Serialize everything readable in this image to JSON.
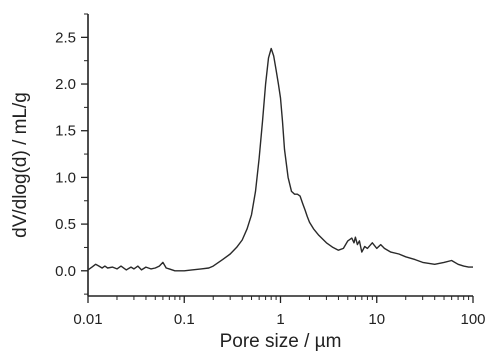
{
  "chart_data": {
    "type": "line",
    "xlabel": "Pore size / µm",
    "ylabel": "dV/dlog(d) / mL/g",
    "xscale": "log",
    "xlim": [
      0.01,
      100
    ],
    "ylim": [
      -0.27,
      2.75
    ],
    "grid": false,
    "x_ticks": [
      {
        "value": 0.01,
        "label": "0.01"
      },
      {
        "value": 0.1,
        "label": "0.1"
      },
      {
        "value": 1,
        "label": "1"
      },
      {
        "value": 10,
        "label": "10"
      },
      {
        "value": 100,
        "label": "100"
      }
    ],
    "y_ticks": [
      {
        "value": 0.0,
        "label": "0.0"
      },
      {
        "value": 0.5,
        "label": "0.5"
      },
      {
        "value": 1.0,
        "label": "1.0"
      },
      {
        "value": 1.5,
        "label": "1.5"
      },
      {
        "value": 2.0,
        "label": "2.0"
      },
      {
        "value": 2.5,
        "label": "2.5"
      }
    ],
    "series": [
      {
        "color": "#2a2a2a",
        "x": [
          0.01,
          0.011,
          0.012,
          0.013,
          0.014,
          0.015,
          0.016,
          0.018,
          0.02,
          0.022,
          0.025,
          0.028,
          0.03,
          0.033,
          0.036,
          0.04,
          0.045,
          0.05,
          0.055,
          0.06,
          0.065,
          0.07,
          0.08,
          0.1,
          0.12,
          0.15,
          0.18,
          0.2,
          0.25,
          0.3,
          0.35,
          0.4,
          0.45,
          0.5,
          0.55,
          0.6,
          0.65,
          0.7,
          0.75,
          0.8,
          0.85,
          0.9,
          0.95,
          1.0,
          1.05,
          1.1,
          1.2,
          1.3,
          1.4,
          1.5,
          1.6,
          1.7,
          1.8,
          1.9,
          2.0,
          2.2,
          2.5,
          3.0,
          3.5,
          4.0,
          4.5,
          5.0,
          5.5,
          5.8,
          6.0,
          6.3,
          6.6,
          7.0,
          7.5,
          8.0,
          9.0,
          10.0,
          11.0,
          12.0,
          14.0,
          17.0,
          20.0,
          25.0,
          30.0,
          40.0,
          50.0,
          60.0,
          70.0,
          80.0,
          90.0,
          100.0
        ],
        "y": [
          0.01,
          0.04,
          0.07,
          0.05,
          0.03,
          0.05,
          0.03,
          0.04,
          0.02,
          0.05,
          0.01,
          0.04,
          0.02,
          0.05,
          0.01,
          0.04,
          0.02,
          0.03,
          0.05,
          0.09,
          0.03,
          0.02,
          0.0,
          0.0,
          0.01,
          0.02,
          0.03,
          0.05,
          0.12,
          0.18,
          0.25,
          0.33,
          0.45,
          0.6,
          0.85,
          1.2,
          1.6,
          2.0,
          2.28,
          2.38,
          2.3,
          2.15,
          2.0,
          1.85,
          1.6,
          1.3,
          1.0,
          0.85,
          0.82,
          0.82,
          0.8,
          0.72,
          0.65,
          0.58,
          0.52,
          0.45,
          0.38,
          0.3,
          0.25,
          0.22,
          0.24,
          0.32,
          0.35,
          0.3,
          0.36,
          0.28,
          0.32,
          0.2,
          0.26,
          0.24,
          0.3,
          0.24,
          0.28,
          0.24,
          0.2,
          0.18,
          0.15,
          0.12,
          0.09,
          0.07,
          0.09,
          0.11,
          0.07,
          0.05,
          0.04,
          0.04
        ]
      }
    ]
  }
}
